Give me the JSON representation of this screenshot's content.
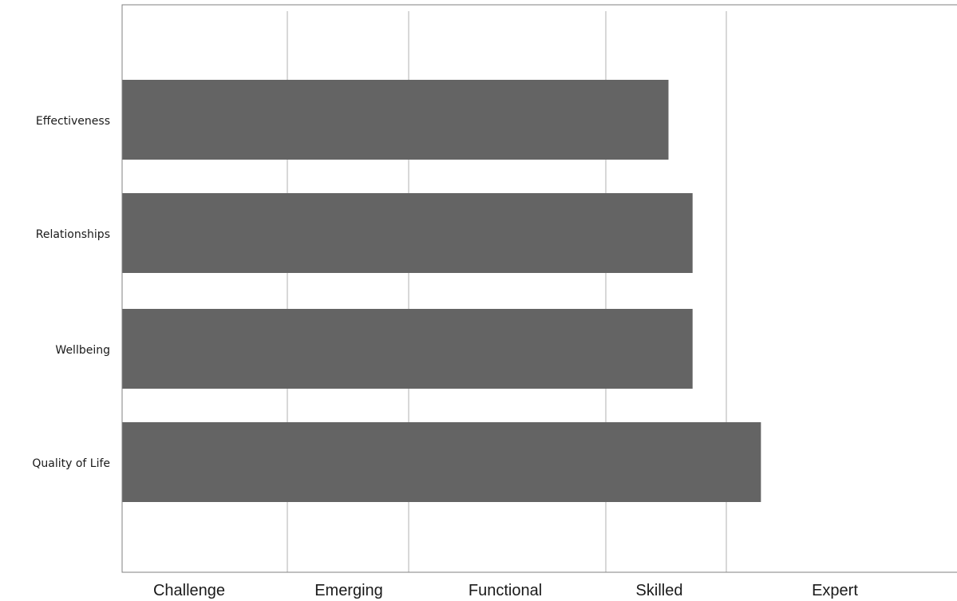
{
  "chart_data": {
    "type": "bar",
    "orientation": "horizontal",
    "categories": [
      "Effectiveness",
      "Relationships",
      "Wellbeing",
      "Quality of Life"
    ],
    "values": [
      2.56,
      2.66,
      2.66,
      2.95
    ],
    "x_scale": "ordinal bands (Challenge 0–1, Emerging 1–1.5, Functional 1.5–2.3, Skilled 2.3–2.8, Expert 2.8–3.8)",
    "x_ticks": [
      "Challenge",
      "Emerging",
      "Functional",
      "Skilled",
      "Expert"
    ],
    "x_bands": [
      [
        0,
        1
      ],
      [
        1,
        1.5
      ],
      [
        1.5,
        2.3
      ],
      [
        2.3,
        2.8
      ],
      [
        2.8,
        3.8
      ]
    ],
    "xlim": [
      0,
      3.8
    ],
    "title": "",
    "xlabel": "",
    "ylabel": "",
    "grid": "vertical",
    "legend": "none",
    "bar_color": "#646464",
    "grid_color": "#cccccc"
  }
}
